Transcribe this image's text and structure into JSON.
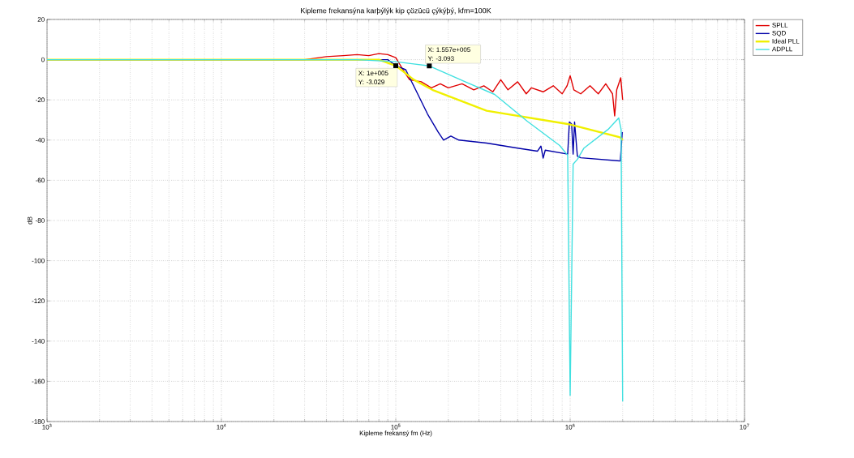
{
  "chart_data": {
    "type": "line",
    "title": "Kipleme frekansýna karþýlýk kip çözücü çýkýþý, kfm=100K",
    "xlabel": "Kipleme frekansý fm (Hz)",
    "ylabel": "dB",
    "log": "x",
    "grid": true,
    "legend": "top right",
    "line_style": "solid",
    "marker": "none",
    "xlim": [
      1000,
      10000000
    ],
    "ylim": [
      -180,
      20
    ],
    "xticks": [
      {
        "value": 1000,
        "label": "10$^{3}$"
      },
      {
        "value": 10000,
        "label": "10$^{4}$"
      },
      {
        "value": 100000,
        "label": "10$^{5}$"
      },
      {
        "value": 1000000,
        "label": "10$^{6}$"
      },
      {
        "value": 10000000,
        "label": "10$^{7}$"
      }
    ],
    "yticks": [
      -180,
      -160,
      -140,
      -120,
      -100,
      -80,
      -60,
      -40,
      -20,
      0,
      20
    ],
    "series": [
      {
        "name": "SPLL",
        "color": "#e00000",
        "x": [
          1000,
          30000,
          40000,
          50000,
          60000,
          70000,
          80000,
          90000,
          100000,
          110000,
          120000,
          140000,
          160000,
          180000,
          200000,
          240000,
          280000,
          320000,
          360000,
          400000,
          440000,
          500000,
          560000,
          600000,
          700000,
          800000,
          900000,
          960000,
          1000000,
          1050000,
          1150000,
          1300000,
          1450000,
          1600000,
          1750000,
          1800000,
          1850000,
          1950000,
          2000000
        ],
        "values": [
          0,
          0,
          1.5,
          2,
          2.5,
          2,
          3,
          2.5,
          1,
          -5,
          -10,
          -11,
          -14,
          -12,
          -14,
          -12,
          -15,
          -13,
          -16,
          -10,
          -15,
          -11,
          -17,
          -14,
          -16,
          -13,
          -17,
          -13,
          -8,
          -15,
          -17,
          -13,
          -17,
          -12,
          -17,
          -28,
          -15,
          -9,
          -20
        ]
      },
      {
        "name": "SQD",
        "color": "#0000a8",
        "x": [
          1000,
          90000,
          100000,
          114000,
          130000,
          152000,
          175000,
          188000,
          207000,
          230000,
          332000,
          500000,
          650000,
          680000,
          700000,
          720000,
          968000,
          990000,
          1020000,
          1040000,
          1060000,
          1100000,
          1150000,
          1940000,
          1990000
        ],
        "values": [
          0,
          0,
          -3,
          -5,
          -15,
          -27,
          -36,
          -40,
          -38,
          -40,
          -41.5,
          -44,
          -45.5,
          -43,
          -49,
          -45,
          -47,
          -31,
          -32,
          -47,
          -31,
          -48,
          -48.8,
          -50.4,
          -36
        ]
      },
      {
        "name": "Ideal  PLL",
        "color": "#f0f000",
        "x": [
          1000,
          80000,
          100000,
          127000,
          162000,
          332000,
          968000,
          1940000,
          2000000
        ],
        "values": [
          0,
          0,
          -3,
          -10,
          -15,
          -25.4,
          -32,
          -38.7,
          -40
        ]
      },
      {
        "name": "ADPLL",
        "color": "#40e0e0",
        "x": [
          1000,
          60000,
          100000,
          155700,
          250000,
          369000,
          567000,
          871000,
          968000,
          1000000,
          1040000,
          1100000,
          1200000,
          1650000,
          1900000,
          1960000,
          2000000
        ],
        "values": [
          0,
          0,
          -1,
          -3.093,
          -11,
          -17.3,
          -30.6,
          -42.7,
          -47.6,
          -167,
          -52,
          -49.6,
          -44,
          -34.7,
          -29,
          -34.7,
          -170
        ]
      }
    ],
    "annotations": [
      {
        "text": "X: 1e+005 Y: -3.029",
        "x": 100000,
        "y": -3.029
      },
      {
        "text": "X: 1.557e+005 Y: -3.093",
        "x": 155700,
        "y": -3.093
      }
    ]
  }
}
